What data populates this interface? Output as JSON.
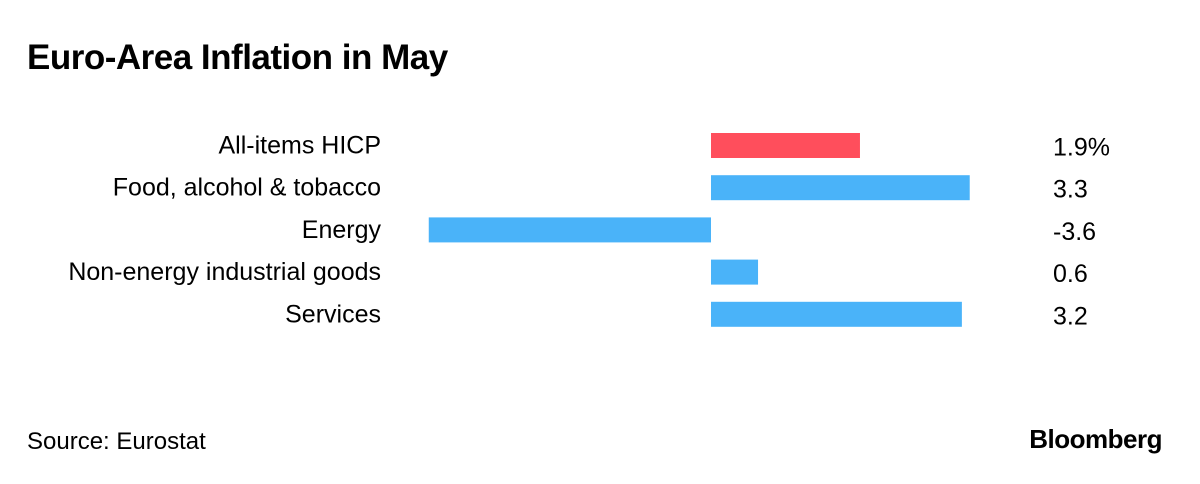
{
  "title": "Euro-Area Inflation in May",
  "source": "Source: Eurostat",
  "brand": "Bloomberg",
  "colors": {
    "highlight": "#ff4e5c",
    "bar": "#4ab3f9",
    "text": "#000000"
  },
  "chart_data": {
    "type": "bar",
    "orientation": "horizontal",
    "categories": [
      "All-items HICP",
      "Food, alcohol & tobacco",
      "Energy",
      "Non-energy industrial goods",
      "Services"
    ],
    "values": [
      1.9,
      3.3,
      -3.6,
      0.6,
      3.2
    ],
    "value_labels": [
      "1.9%",
      "3.3",
      "-3.6",
      "0.6",
      "3.2"
    ],
    "highlight_index": 0,
    "title": "Euro-Area Inflation in May",
    "xlabel": "",
    "ylabel": "",
    "xlim": [
      -3.6,
      3.3
    ],
    "grid": false,
    "legend": "none"
  }
}
